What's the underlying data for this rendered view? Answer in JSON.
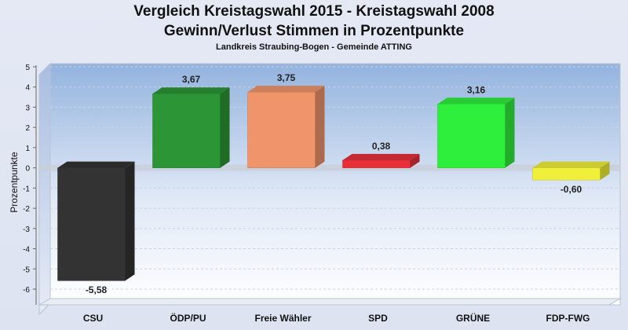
{
  "chart_data": {
    "type": "bar",
    "title": "Vergleich Kreistagswahl 2015 - Kreistagswahl 2008",
    "title_line2": "Gewinn/Verlust Stimmen in Prozentpunkte",
    "subtitle": "Landkreis Straubing-Bogen - Gemeinde ATTING",
    "ylabel": "Prozentpunkte",
    "ylim": [
      -6,
      5
    ],
    "yticks": [
      "5",
      "4",
      "3",
      "2",
      "1",
      "0",
      "-1",
      "-2",
      "-3",
      "-4",
      "-5",
      "-6"
    ],
    "categories": [
      "CSU",
      "ÖDP/PU",
      "Freie Wähler",
      "SPD",
      "GRÜNE",
      "FDP-FWG"
    ],
    "values": [
      -5.58,
      3.67,
      3.75,
      0.38,
      3.16,
      -0.6
    ],
    "value_labels": [
      "-5,58",
      "3,67",
      "3,75",
      "0,38",
      "3,16",
      "-0,60"
    ],
    "colors": [
      "#333333",
      "#2c9636",
      "#f0956b",
      "#e8303a",
      "#2ef03c",
      "#f0f03a"
    ],
    "grid": true
  }
}
